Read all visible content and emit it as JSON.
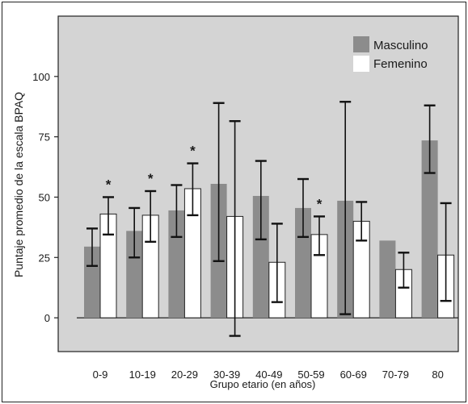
{
  "chart_data": {
    "type": "bar",
    "xlabel": "Grupo etario (en años)",
    "ylabel": "Puntaje promedio de la escala BPAQ",
    "yticks": [
      0,
      25,
      50,
      75,
      100
    ],
    "categories": [
      "0-9",
      "10-19",
      "20-29",
      "30-39",
      "40-49",
      "50-59",
      "60-69",
      "70-79",
      "80"
    ],
    "series": [
      {
        "name": "Masculino",
        "color": "#8c8c8c",
        "values": [
          29.5,
          36,
          44.5,
          55.5,
          50.5,
          45.5,
          48.5,
          32,
          73.5
        ],
        "err_low": [
          21.5,
          25,
          33.5,
          23.5,
          32.5,
          33.5,
          1.5,
          null,
          60
        ],
        "err_high": [
          37,
          45.5,
          55,
          89,
          65,
          57.5,
          89.5,
          null,
          88
        ]
      },
      {
        "name": "Femenino",
        "color": "#ffffff",
        "values": [
          43,
          42.5,
          53.5,
          42,
          23,
          34.5,
          40,
          20,
          26
        ],
        "err_low": [
          34.5,
          31.5,
          42.5,
          -7.5,
          6.5,
          26,
          32,
          12.5,
          7
        ],
        "err_high": [
          50,
          52.5,
          64,
          81.5,
          39,
          42,
          48,
          27,
          47.5
        ]
      }
    ],
    "significance_marker": "*",
    "significant_categories": [
      "0-9",
      "10-19",
      "20-29",
      "50-59"
    ],
    "ylim": [
      -14,
      125
    ],
    "legend_position": "top-right",
    "plot_background": "#d4d4d4"
  }
}
